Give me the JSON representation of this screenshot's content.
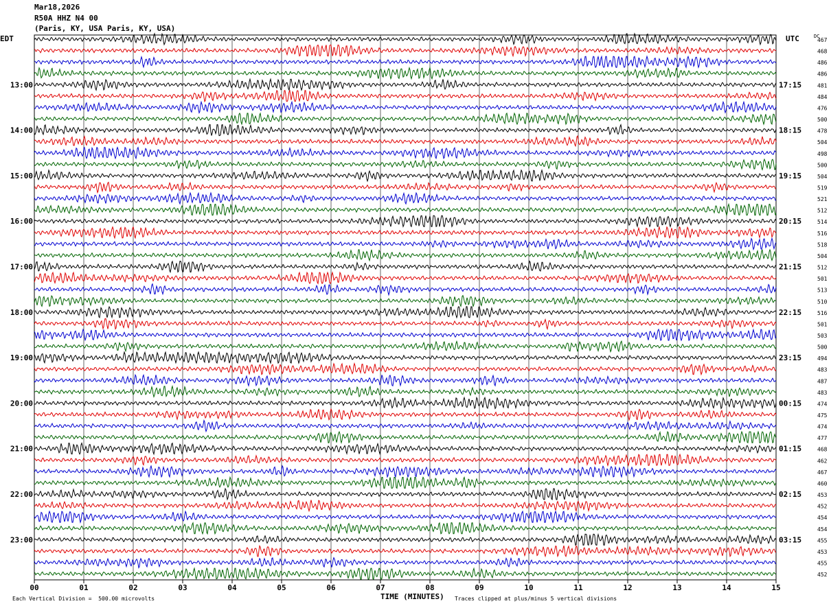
{
  "header": {
    "date": "Mar18,2026",
    "station": "R50A HHZ N4 00",
    "location": "(Paris, KY, USA Paris, KY, USA)"
  },
  "left_timezone": "EDT",
  "right_timezone": "UTC",
  "dc_label": "DC",
  "footer": {
    "scale_note": "Each Vertical Division =  500.00 microvolts",
    "xlabel": "TIME (MINUTES)",
    "clip_note": "Traces clipped at plus/minus 5 vertical divisions"
  },
  "chart_data": {
    "type": "line",
    "title": "R50A HHZ N4 00",
    "xlabel": "TIME (MINUTES)",
    "x_range": [
      0,
      15
    ],
    "x_ticks": [
      "00",
      "01",
      "02",
      "03",
      "04",
      "05",
      "06",
      "07",
      "08",
      "09",
      "10",
      "11",
      "12",
      "13",
      "14",
      "15"
    ],
    "trace_colors": [
      "#000000",
      "#e00000",
      "#0000d0",
      "#006400"
    ],
    "left_hour_labels": [
      "13:00",
      "14:00",
      "15:00",
      "16:00",
      "17:00",
      "18:00",
      "19:00",
      "20:00",
      "21:00",
      "22:00",
      "23:00"
    ],
    "right_hour_labels": [
      "17:15",
      "18:15",
      "19:15",
      "20:15",
      "21:15",
      "22:15",
      "23:15",
      "00:15",
      "01:15",
      "02:15",
      "03:15"
    ],
    "dc_offsets": [
      467,
      468,
      486,
      486,
      481,
      484,
      476,
      500,
      478,
      504,
      498,
      500,
      504,
      519,
      521,
      512,
      514,
      516,
      518,
      504,
      512,
      501,
      513,
      510,
      516,
      501,
      503,
      500,
      494,
      483,
      487,
      483,
      474,
      475,
      474,
      477,
      468,
      462,
      467,
      460,
      453,
      452,
      454,
      454,
      455,
      453,
      455,
      452
    ],
    "grid": true
  }
}
